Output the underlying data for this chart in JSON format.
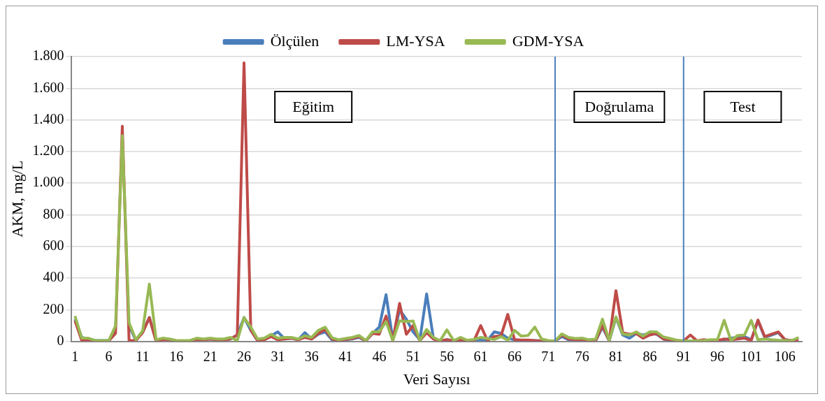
{
  "chart_data": {
    "type": "line",
    "xlabel": "Veri Sayısı",
    "ylabel": "AKM, mg/L",
    "x": [
      1,
      2,
      3,
      4,
      5,
      6,
      7,
      8,
      9,
      10,
      11,
      12,
      13,
      14,
      15,
      16,
      17,
      18,
      19,
      20,
      21,
      22,
      23,
      24,
      25,
      26,
      27,
      28,
      29,
      30,
      31,
      32,
      33,
      34,
      35,
      36,
      37,
      38,
      39,
      40,
      41,
      42,
      43,
      44,
      45,
      46,
      47,
      48,
      49,
      50,
      51,
      52,
      53,
      54,
      55,
      56,
      57,
      58,
      59,
      60,
      61,
      62,
      63,
      64,
      65,
      66,
      67,
      68,
      69,
      70,
      71,
      72,
      73,
      74,
      75,
      76,
      77,
      78,
      79,
      80,
      81,
      82,
      83,
      84,
      85,
      86,
      87,
      88,
      89,
      90,
      91,
      92,
      93,
      94,
      95,
      96,
      97,
      98,
      99,
      100,
      101,
      102,
      103,
      104,
      105,
      106,
      107,
      108
    ],
    "xlim": [
      0.5,
      108.5
    ],
    "xticks": [
      1,
      6,
      11,
      16,
      21,
      26,
      31,
      36,
      41,
      46,
      51,
      56,
      61,
      66,
      71,
      76,
      81,
      86,
      91,
      96,
      101,
      106
    ],
    "ylim": [
      0,
      1800
    ],
    "yticks": [
      0,
      200,
      400,
      600,
      800,
      {
        "value": 1000,
        "label": "1.000"
      },
      {
        "value": 1200,
        "label": "1.200"
      },
      {
        "value": 1400,
        "label": "1.400"
      },
      {
        "value": 1600,
        "label": "1.600"
      },
      {
        "value": 1800,
        "label": "1.800"
      }
    ],
    "grid": "y",
    "legend": "top",
    "marker": "none",
    "line_style": "solid",
    "series": [
      {
        "name": "Ölçülen",
        "color": "#4a7ebb",
        "values": [
          140,
          25,
          15,
          5,
          5,
          5,
          60,
          null,
          100,
          5,
          60,
          150,
          5,
          15,
          10,
          3,
          3,
          3,
          10,
          10,
          15,
          10,
          10,
          15,
          40,
          150,
          70,
          5,
          15,
          35,
          60,
          15,
          20,
          10,
          55,
          15,
          45,
          60,
          10,
          5,
          10,
          15,
          25,
          3,
          50,
          90,
          295,
          10,
          200,
          140,
          60,
          10,
          300,
          20,
          3,
          10,
          3,
          5,
          3,
          3,
          10,
          5,
          60,
          50,
          20,
          10,
          5,
          5,
          5,
          3,
          3,
          3,
          30,
          10,
          8,
          10,
          3,
          3,
          90,
          3,
          150,
          40,
          20,
          50,
          40,
          50,
          45,
          15,
          5,
          3,
          3,
          3,
          3,
          3,
          3,
          3,
          10,
          20,
          25,
          30,
          10,
          130,
          25,
          40,
          55,
          10,
          5,
          5
        ]
      },
      {
        "name": "LM-YSA",
        "color": "#be4b48",
        "values": [
          130,
          5,
          10,
          3,
          3,
          3,
          50,
          1360,
          5,
          5,
          55,
          150,
          0,
          10,
          10,
          3,
          3,
          3,
          10,
          10,
          15,
          10,
          10,
          15,
          40,
          1760,
          70,
          5,
          10,
          30,
          10,
          15,
          20,
          10,
          25,
          15,
          50,
          75,
          15,
          5,
          12,
          18,
          30,
          3,
          50,
          45,
          160,
          5,
          240,
          45,
          100,
          5,
          55,
          15,
          3,
          10,
          3,
          8,
          3,
          3,
          100,
          5,
          30,
          35,
          170,
          10,
          8,
          8,
          5,
          3,
          3,
          3,
          40,
          15,
          10,
          12,
          5,
          5,
          100,
          5,
          320,
          55,
          45,
          50,
          20,
          40,
          50,
          15,
          10,
          5,
          3,
          40,
          3,
          10,
          5,
          5,
          15,
          10,
          15,
          20,
          5,
          135,
          30,
          45,
          60,
          10,
          5,
          5
        ]
      },
      {
        "name": "GDM-YSA",
        "color": "#98b954",
        "values": [
          160,
          20,
          20,
          5,
          5,
          5,
          98,
          1300,
          118,
          10,
          66,
          362,
          10,
          20,
          15,
          5,
          5,
          5,
          20,
          15,
          20,
          15,
          15,
          25,
          5,
          150,
          90,
          15,
          20,
          45,
          20,
          25,
          25,
          15,
          35,
          25,
          70,
          90,
          23,
          10,
          18,
          25,
          37,
          5,
          60,
          60,
          125,
          5,
          130,
          125,
          128,
          5,
          75,
          25,
          5,
          73,
          5,
          25,
          7,
          12,
          25,
          18,
          12,
          30,
          7,
          70,
          33,
          37,
          90,
          15,
          5,
          3,
          47,
          25,
          18,
          20,
          10,
          14,
          140,
          5,
          155,
          47,
          40,
          60,
          33,
          60,
          60,
          28,
          18,
          7,
          3,
          3,
          3,
          5,
          10,
          10,
          133,
          5,
          37,
          40,
          133,
          10,
          15,
          10,
          7,
          5,
          5,
          25
        ]
      }
    ],
    "ref_lines": [
      {
        "axis": "x",
        "value": 72,
        "color": "#4a7ebb",
        "line_style": "solid"
      },
      {
        "axis": "x",
        "value": 91,
        "color": "#4a7ebb",
        "line_style": "solid"
      }
    ],
    "annotations": [
      "Eğitim",
      "Doğrulama",
      "Test"
    ]
  }
}
